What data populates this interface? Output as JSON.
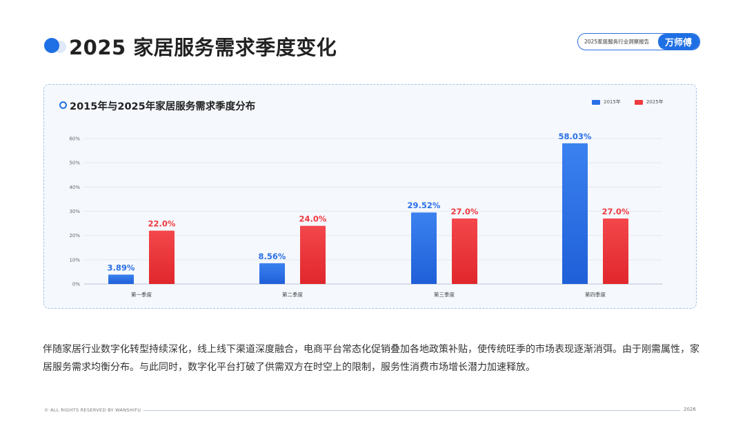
{
  "header": {
    "title": "2025 家居服务需求季度变化",
    "brand_report": "2025家居服务行业洞察报告",
    "brand_name": "万师傅"
  },
  "chart": {
    "title": "2015年与2025年家居服务需求季度分布",
    "legend": [
      "2015年",
      "2025年"
    ]
  },
  "chart_data": {
    "type": "bar",
    "title": "2015年与2025年家居服务需求季度分布",
    "categories": [
      "第一季度",
      "第二季度",
      "第三季度",
      "第四季度"
    ],
    "series": [
      {
        "name": "2015年",
        "values": [
          3.89,
          8.56,
          29.52,
          58.03
        ],
        "labels": [
          "3.89%",
          "8.56%",
          "29.52%",
          "58.03%"
        ],
        "color": "#2a6fe6"
      },
      {
        "name": "2025年",
        "values": [
          22.0,
          24.0,
          27.0,
          27.0
        ],
        "labels": [
          "22.0%",
          "24.0%",
          "27.0%",
          "27.0%"
        ],
        "color": "#ef3a3f"
      }
    ],
    "yticks": [
      "0%",
      "10%",
      "20%",
      "30%",
      "40%",
      "50%",
      "60%"
    ],
    "ylim": [
      0,
      60
    ],
    "xlabel": "",
    "ylabel": "",
    "grid": true,
    "legend_position": "top-right"
  },
  "body_text": "伴随家居行业数字化转型持续深化，线上线下渠道深度融合，电商平台常态化促销叠加各地政策补贴，使传统旺季的市场表现逐渐消弭。由于刚需属性，家居服务需求均衡分布。与此同时，数字化平台打破了供需双方在时空上的限制，服务性消费市场增长潜力加速释放。",
  "footer": {
    "copyright": "© ALL RIGHTS RESERVED BY WANSHIFU",
    "year": "2026"
  },
  "colors": {
    "accent": "#1f6fe5",
    "series_2015": "#2a6fe6",
    "series_2025": "#ef3a3f"
  }
}
